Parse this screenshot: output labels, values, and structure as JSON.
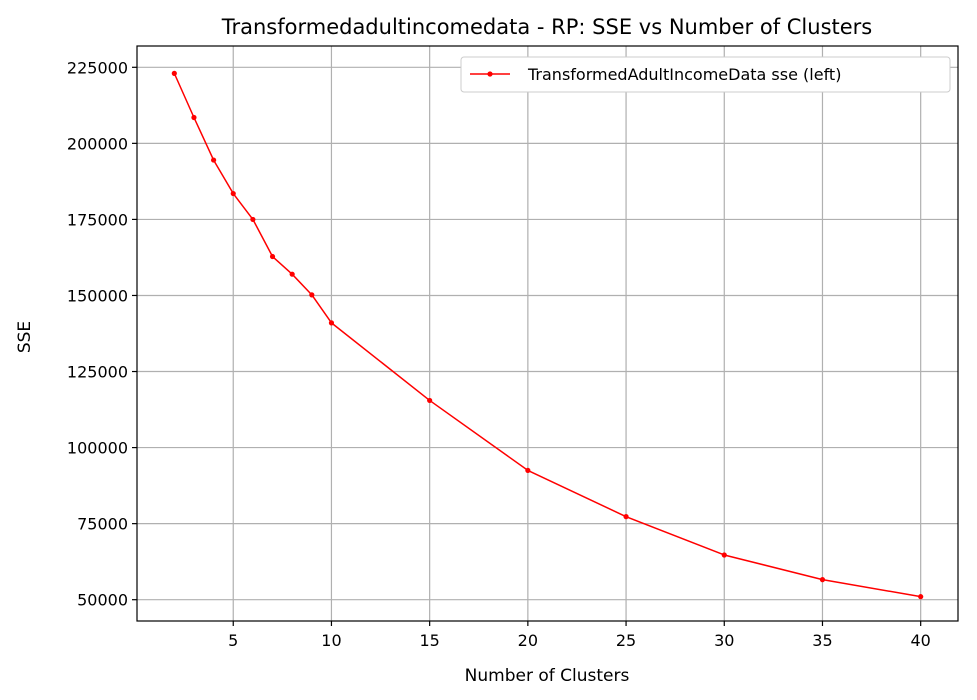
{
  "chart_data": {
    "type": "line",
    "title": "Transformedadultincomedata - RP: SSE vs Number of Clusters",
    "xlabel": "Number of Clusters",
    "ylabel": "SSE",
    "xlim": [
      0.1,
      41.9
    ],
    "ylim": [
      43000,
      232000
    ],
    "xticks": [
      5,
      10,
      15,
      20,
      25,
      30,
      35,
      40
    ],
    "yticks": [
      50000,
      75000,
      100000,
      125000,
      150000,
      175000,
      200000,
      225000
    ],
    "grid": true,
    "legend_position": "top-right",
    "series": [
      {
        "name": "TransformedAdultIncomeData sse (left)",
        "color": "#ff0000",
        "marker": "circle",
        "x": [
          2,
          3,
          4,
          5,
          6,
          7,
          8,
          9,
          10,
          15,
          20,
          25,
          30,
          35,
          40
        ],
        "y": [
          223000,
          208500,
          194500,
          183500,
          175000,
          162800,
          157000,
          150200,
          141000,
          115500,
          92500,
          77300,
          64700,
          56600,
          51000
        ]
      }
    ]
  }
}
